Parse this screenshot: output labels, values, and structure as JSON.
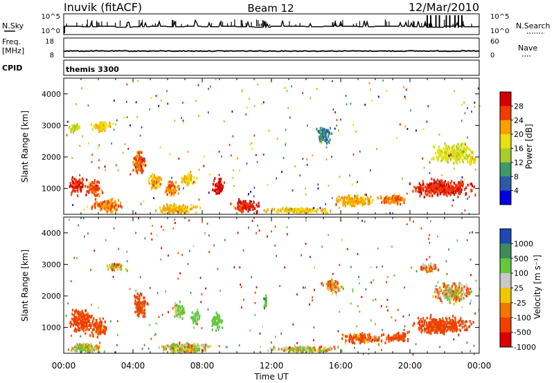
{
  "header": {
    "station": "Inuvik (fitACF)",
    "beam": "Beam 12",
    "date": "12/Mar/2010"
  },
  "nsky_panel": {
    "left_label": "N.Sky",
    "right_label": "N.Search",
    "left_ticks": [
      "10^5",
      "10^0"
    ],
    "right_ticks": [
      "10^5",
      "10^0"
    ]
  },
  "freq_panel": {
    "left_label_1": "Freq.",
    "left_label_2": "[MHz]",
    "right_label": "Nave",
    "left_ticks": [
      "18",
      "8"
    ],
    "right_ticks": [
      "60",
      "0"
    ]
  },
  "cpid_panel": {
    "label": "CPID",
    "value": "themis 3300"
  },
  "power_panel": {
    "ylabel": "Slant Range [km]",
    "colorbar_label": "Power [dB]",
    "colorbar_ticks": [
      "28",
      "24",
      "20",
      "16",
      "12",
      "8",
      "4"
    ]
  },
  "velocity_panel": {
    "ylabel": "Slant Range [km]",
    "colorbar_label": "Velocity [m s⁻¹]",
    "colorbar_ticks": [
      "1000",
      "500",
      "100",
      "25",
      "-25",
      "-100",
      "-500",
      "-1000"
    ]
  },
  "colors": {
    "power_scale": [
      "#d40000",
      "#f03c00",
      "#f7a000",
      "#e8e010",
      "#a8cc2a",
      "#3c9a68",
      "#2d5aa8",
      "#0000e0"
    ],
    "velocity_scale": [
      "#1e48b4",
      "#3c8c5a",
      "#64c83c",
      "#c8c8c8",
      "#f0c800",
      "#f07800",
      "#f04000",
      "#dc0000"
    ]
  },
  "chart_data": [
    {
      "type": "line",
      "title": "",
      "series": [
        {
          "name": "N.Sky",
          "values": [
            2,
            3,
            2,
            4,
            3,
            2,
            3,
            2,
            3,
            2,
            3,
            4,
            2,
            2,
            3,
            2,
            2,
            3,
            2,
            2,
            3,
            4,
            2,
            3,
            2
          ]
        },
        {
          "name": "N.Search",
          "values": [
            3,
            3,
            3,
            4,
            3,
            3,
            3,
            3,
            3,
            3,
            3,
            3,
            3,
            3,
            3,
            3,
            3,
            3,
            3,
            3,
            3,
            5,
            5,
            3,
            3
          ]
        }
      ],
      "x": [
        "00:00",
        "01:00",
        "02:00",
        "03:00",
        "04:00",
        "05:00",
        "06:00",
        "07:00",
        "08:00",
        "09:00",
        "10:00",
        "11:00",
        "12:00",
        "13:00",
        "14:00",
        "15:00",
        "16:00",
        "17:00",
        "18:00",
        "19:00",
        "20:00",
        "21:00",
        "22:00",
        "23:00",
        "24:00"
      ],
      "ylim": [
        0,
        5
      ],
      "y_scale": "log"
    },
    {
      "type": "line",
      "series": [
        {
          "name": "Freq.",
          "values": [
            11,
            11,
            11,
            11,
            11,
            11,
            11,
            11,
            11,
            11,
            11,
            11,
            11,
            11,
            11,
            11,
            11,
            11,
            11,
            11,
            11,
            11,
            11,
            11,
            11
          ]
        }
      ],
      "ylim": [
        8,
        18
      ]
    },
    {
      "type": "heatmap",
      "xlabel": "",
      "ylabel": "Slant Range [km]",
      "xlim": [
        "00:00",
        "24:00"
      ],
      "ylim": [
        180,
        4500
      ],
      "colorbar_range": [
        0,
        30
      ],
      "blobs": [
        {
          "t": 0.8,
          "r": 1100,
          "dt": 0.6,
          "dr": 350,
          "v": 26
        },
        {
          "t": 1.7,
          "r": 1000,
          "dt": 0.6,
          "dr": 320,
          "v": 24
        },
        {
          "t": 2.2,
          "r": 2950,
          "dt": 0.8,
          "dr": 200,
          "v": 18
        },
        {
          "t": 0.6,
          "r": 2900,
          "dt": 0.5,
          "dr": 180,
          "v": 14
        },
        {
          "t": 4.3,
          "r": 1800,
          "dt": 0.5,
          "dr": 500,
          "v": 24
        },
        {
          "t": 5.2,
          "r": 1200,
          "dt": 0.5,
          "dr": 300,
          "v": 20
        },
        {
          "t": 6.2,
          "r": 1000,
          "dt": 0.5,
          "dr": 300,
          "v": 22
        },
        {
          "t": 7.2,
          "r": 1300,
          "dt": 0.5,
          "dr": 300,
          "v": 18
        },
        {
          "t": 8.9,
          "r": 1050,
          "dt": 0.4,
          "dr": 350,
          "v": 28
        },
        {
          "t": 10.5,
          "r": 450,
          "dt": 1.0,
          "dr": 250,
          "v": 27
        },
        {
          "t": 2.5,
          "r": 450,
          "dt": 1.2,
          "dr": 250,
          "v": 22
        },
        {
          "t": 6.5,
          "r": 350,
          "dt": 1.5,
          "dr": 200,
          "v": 20
        },
        {
          "t": 13.5,
          "r": 300,
          "dt": 2.5,
          "dr": 120,
          "v": 18
        },
        {
          "t": 15.0,
          "r": 2700,
          "dt": 0.6,
          "dr": 300,
          "v": 8
        },
        {
          "t": 16.8,
          "r": 600,
          "dt": 1.5,
          "dr": 250,
          "v": 20
        },
        {
          "t": 19.0,
          "r": 650,
          "dt": 1.2,
          "dr": 200,
          "v": 22
        },
        {
          "t": 21.8,
          "r": 1000,
          "dt": 2.2,
          "dr": 350,
          "v": 26
        },
        {
          "t": 22.5,
          "r": 2100,
          "dt": 1.5,
          "dr": 400,
          "v": 16
        },
        {
          "t": 23.6,
          "r": 1900,
          "dt": 0.3,
          "dr": 200,
          "v": 18
        }
      ]
    },
    {
      "type": "heatmap",
      "xlabel": "Time UT",
      "ylabel": "Slant Range [km]",
      "xlim": [
        "00:00",
        "24:00"
      ],
      "ylim": [
        180,
        4500
      ],
      "colorbar_range": [
        -1000,
        1000
      ],
      "blobs": [
        {
          "t": 1.0,
          "r": 1200,
          "dt": 0.9,
          "dr": 500,
          "v": -250
        },
        {
          "t": 2.0,
          "r": 1000,
          "dt": 0.7,
          "dr": 350,
          "v": -200
        },
        {
          "t": 4.4,
          "r": 1700,
          "dt": 0.5,
          "dr": 500,
          "v": -200
        },
        {
          "t": 6.6,
          "r": 1500,
          "dt": 0.5,
          "dr": 350,
          "v": 120
        },
        {
          "t": 7.6,
          "r": 1300,
          "dt": 0.4,
          "dr": 300,
          "v": 200
        },
        {
          "t": 8.8,
          "r": 1200,
          "dt": 0.4,
          "dr": 350,
          "v": 300
        },
        {
          "t": 11.6,
          "r": 1800,
          "dt": 0.15,
          "dr": 250,
          "v": 450
        },
        {
          "t": 3.0,
          "r": 2900,
          "dt": 0.7,
          "dr": 180,
          "v": 0
        },
        {
          "t": 1.3,
          "r": 350,
          "dt": 1.3,
          "dr": 200,
          "v": 60
        },
        {
          "t": 7.0,
          "r": 350,
          "dt": 2.0,
          "dr": 200,
          "v": 60
        },
        {
          "t": 14.0,
          "r": 300,
          "dt": 3.0,
          "dr": 120,
          "v": 60
        },
        {
          "t": 17.2,
          "r": 650,
          "dt": 1.5,
          "dr": 220,
          "v": -150
        },
        {
          "t": 19.2,
          "r": 700,
          "dt": 1.0,
          "dr": 200,
          "v": -250
        },
        {
          "t": 21.8,
          "r": 1050,
          "dt": 2.2,
          "dr": 350,
          "v": -250
        },
        {
          "t": 22.5,
          "r": 2100,
          "dt": 1.4,
          "dr": 400,
          "v": 0
        },
        {
          "t": 21.0,
          "r": 2900,
          "dt": 0.7,
          "dr": 200,
          "v": -25
        },
        {
          "t": 15.5,
          "r": 2300,
          "dt": 0.7,
          "dr": 300,
          "v": -60
        }
      ]
    }
  ]
}
